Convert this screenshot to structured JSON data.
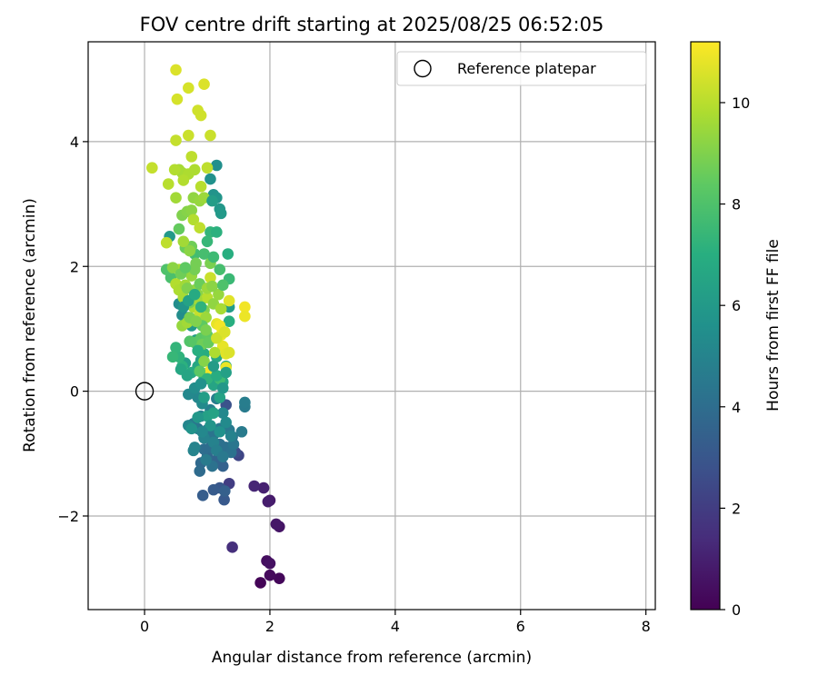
{
  "chart_data": {
    "type": "scatter",
    "title": "FOV centre drift starting at 2025/08/25 06:52:05",
    "xlabel": "Angular distance from reference (arcmin)",
    "ylabel": "Rotation from reference (arcmin)",
    "xlim": [
      -0.9,
      8.15
    ],
    "ylim": [
      -3.5,
      5.6
    ],
    "xticks": [
      0,
      2,
      4,
      6,
      8
    ],
    "yticks": [
      -2,
      0,
      2,
      4
    ],
    "grid": true,
    "legend": {
      "placement": "top-right",
      "entries": [
        {
          "label": "Reference platepar",
          "marker": "open-circle"
        }
      ]
    },
    "reference_point": {
      "x": 0,
      "y": 0
    },
    "colorbar": {
      "label": "Hours from first FF file",
      "colormap": "viridis",
      "range": [
        0,
        11.2
      ],
      "ticks": [
        0,
        2,
        4,
        6,
        8,
        10
      ]
    },
    "points": [
      [
        1.85,
        -3.07,
        0.1
      ],
      [
        2.15,
        -3.0,
        0.2
      ],
      [
        2.0,
        -2.95,
        0.3
      ],
      [
        1.95,
        -2.72,
        0.4
      ],
      [
        2.0,
        -2.76,
        0.5
      ],
      [
        2.15,
        -2.17,
        0.6
      ],
      [
        2.1,
        -2.13,
        0.7
      ],
      [
        2.0,
        -1.75,
        0.8
      ],
      [
        1.97,
        -1.77,
        0.9
      ],
      [
        1.9,
        -1.55,
        1.0
      ],
      [
        1.75,
        -1.52,
        1.2
      ],
      [
        1.4,
        -2.5,
        1.5
      ],
      [
        1.35,
        -1.48,
        2.0
      ],
      [
        1.5,
        -1.03,
        2.3
      ],
      [
        1.45,
        -0.98,
        2.6
      ],
      [
        1.3,
        -0.22,
        2.8
      ],
      [
        1.2,
        -1.55,
        3.0
      ],
      [
        1.27,
        -1.74,
        3.1
      ],
      [
        1.1,
        -1.58,
        3.2
      ],
      [
        0.93,
        -1.67,
        3.3
      ],
      [
        1.28,
        -1.6,
        3.4
      ],
      [
        1.25,
        -1.2,
        3.5
      ],
      [
        1.15,
        -1.1,
        3.6
      ],
      [
        1.0,
        -1.05,
        3.7
      ],
      [
        0.9,
        -1.15,
        3.8
      ],
      [
        0.88,
        -1.28,
        3.9
      ],
      [
        0.95,
        -0.93,
        4.0
      ],
      [
        1.05,
        -0.9,
        4.0
      ],
      [
        1.2,
        -0.85,
        4.1
      ],
      [
        1.3,
        -0.9,
        4.1
      ],
      [
        1.38,
        -0.98,
        4.2
      ],
      [
        1.4,
        -0.73,
        4.2
      ],
      [
        1.1,
        -0.7,
        4.3
      ],
      [
        1.0,
        -0.62,
        4.3
      ],
      [
        0.85,
        -0.6,
        4.4
      ],
      [
        0.78,
        -0.52,
        4.4
      ],
      [
        1.2,
        -0.6,
        4.5
      ],
      [
        1.35,
        -0.62,
        4.5
      ],
      [
        1.55,
        -0.65,
        4.6
      ],
      [
        1.6,
        -0.25,
        4.6
      ],
      [
        1.6,
        -0.18,
        4.7
      ],
      [
        1.15,
        -0.12,
        4.7
      ],
      [
        1.05,
        -0.3,
        4.8
      ],
      [
        0.9,
        -0.4,
        4.8
      ],
      [
        0.95,
        -0.75,
        4.9
      ],
      [
        1.1,
        -0.82,
        4.9
      ],
      [
        0.8,
        -0.9,
        5.0
      ],
      [
        0.78,
        -0.95,
        5.0
      ],
      [
        0.7,
        -0.55,
        5.1
      ],
      [
        0.85,
        -0.1,
        5.1
      ],
      [
        0.7,
        -0.05,
        5.2
      ],
      [
        1.25,
        -0.35,
        5.2
      ],
      [
        0.92,
        -0.2,
        5.3
      ],
      [
        0.55,
        1.4,
        5.4
      ],
      [
        0.6,
        1.22,
        5.4
      ],
      [
        0.7,
        1.18,
        5.5
      ],
      [
        1.15,
        3.62,
        5.5
      ],
      [
        1.05,
        3.4,
        5.6
      ],
      [
        1.1,
        3.15,
        5.7
      ],
      [
        1.15,
        3.1,
        5.8
      ],
      [
        1.2,
        2.92,
        5.9
      ],
      [
        0.4,
        2.48,
        6.0
      ],
      [
        0.75,
        1.05,
        6.0
      ],
      [
        1.35,
        1.35,
        6.1
      ],
      [
        0.82,
        0.82,
        6.2
      ],
      [
        0.65,
        0.45,
        6.2
      ],
      [
        0.9,
        0.5,
        6.3
      ],
      [
        1.0,
        -0.4,
        6.3
      ],
      [
        1.1,
        -0.35,
        6.4
      ],
      [
        1.2,
        -0.1,
        6.4
      ],
      [
        1.1,
        0.1,
        6.5
      ],
      [
        1.25,
        0.15,
        6.5
      ],
      [
        1.3,
        0.4,
        6.6
      ],
      [
        0.85,
        0.4,
        6.6
      ],
      [
        0.95,
        0.2,
        6.7
      ],
      [
        1.15,
        0.55,
        6.7
      ],
      [
        0.75,
        0.3,
        6.8
      ],
      [
        1.02,
        0.3,
        6.8
      ],
      [
        0.95,
        0.6,
        6.9
      ],
      [
        1.35,
        1.12,
        7.0
      ],
      [
        1.33,
        2.2,
        7.0
      ],
      [
        0.6,
        0.4,
        7.1
      ],
      [
        0.55,
        0.55,
        7.2
      ],
      [
        0.5,
        0.7,
        7.3
      ],
      [
        0.45,
        0.55,
        7.4
      ],
      [
        1.35,
        1.8,
        7.5
      ],
      [
        1.2,
        0.2,
        7.6
      ],
      [
        0.8,
        2.2,
        7.7
      ],
      [
        0.95,
        2.2,
        7.8
      ],
      [
        0.42,
        1.82,
        7.9
      ],
      [
        0.35,
        1.95,
        8.0
      ],
      [
        0.72,
        0.8,
        8.1
      ],
      [
        0.8,
        0.78,
        8.2
      ],
      [
        0.9,
        0.85,
        8.3
      ],
      [
        1.0,
        0.9,
        8.4
      ],
      [
        0.55,
        2.6,
        8.5
      ],
      [
        0.65,
        2.3,
        8.6
      ],
      [
        0.75,
        2.32,
        8.7
      ],
      [
        0.82,
        2.05,
        8.8
      ],
      [
        1.05,
        2.05,
        8.9
      ],
      [
        0.6,
        2.82,
        9.0
      ],
      [
        0.68,
        2.88,
        9.1
      ],
      [
        0.75,
        2.9,
        9.2
      ],
      [
        0.78,
        3.1,
        9.3
      ],
      [
        0.88,
        3.05,
        9.4
      ],
      [
        0.95,
        3.1,
        9.5
      ],
      [
        0.5,
        3.1,
        9.6
      ],
      [
        0.55,
        3.55,
        9.7
      ],
      [
        0.6,
        3.5,
        9.7
      ],
      [
        0.7,
        3.48,
        9.8
      ],
      [
        0.8,
        3.55,
        9.8
      ],
      [
        0.62,
        3.38,
        9.9
      ],
      [
        0.48,
        3.55,
        9.9
      ],
      [
        0.38,
        3.32,
        10.0
      ],
      [
        0.9,
        3.28,
        10.0
      ],
      [
        1.0,
        3.58,
        10.1
      ],
      [
        0.75,
        3.76,
        10.1
      ],
      [
        0.12,
        3.58,
        10.2
      ],
      [
        0.5,
        4.02,
        10.2
      ],
      [
        0.7,
        4.1,
        10.3
      ],
      [
        1.05,
        4.1,
        10.3
      ],
      [
        0.85,
        4.5,
        10.4
      ],
      [
        0.9,
        4.42,
        10.4
      ],
      [
        0.52,
        4.68,
        10.5
      ],
      [
        0.7,
        4.86,
        10.5
      ],
      [
        0.95,
        4.92,
        10.6
      ],
      [
        0.5,
        5.15,
        10.6
      ],
      [
        0.35,
        2.38,
        10.1
      ],
      [
        0.5,
        1.72,
        9.9
      ],
      [
        0.55,
        1.62,
        9.8
      ],
      [
        0.62,
        1.5,
        9.7
      ],
      [
        0.65,
        1.7,
        9.6
      ],
      [
        0.7,
        1.92,
        9.5
      ],
      [
        0.75,
        1.85,
        9.4
      ],
      [
        0.8,
        1.62,
        9.3
      ],
      [
        0.85,
        1.55,
        9.2
      ],
      [
        0.9,
        1.45,
        9.1
      ],
      [
        0.95,
        1.3,
        9.0
      ],
      [
        1.0,
        1.5,
        10.0
      ],
      [
        1.05,
        1.82,
        10.3
      ],
      [
        0.6,
        1.05,
        9.4
      ],
      [
        0.68,
        1.1,
        9.6
      ],
      [
        0.78,
        1.35,
        9.8
      ],
      [
        0.88,
        1.25,
        10.2
      ],
      [
        0.98,
        1.18,
        9.5
      ],
      [
        1.1,
        1.4,
        9.3
      ],
      [
        1.15,
        1.08,
        10.8
      ],
      [
        1.2,
        1.05,
        11.0
      ],
      [
        1.22,
        0.9,
        10.9
      ],
      [
        1.25,
        0.72,
        10.8
      ],
      [
        1.3,
        0.6,
        10.7
      ],
      [
        1.35,
        0.62,
        10.6
      ],
      [
        1.3,
        0.38,
        10.9
      ],
      [
        1.05,
        0.33,
        11.0
      ],
      [
        1.6,
        1.35,
        11.0
      ],
      [
        1.6,
        1.2,
        10.9
      ],
      [
        1.35,
        1.45,
        10.7
      ],
      [
        0.55,
        1.95,
        9.8
      ],
      [
        0.62,
        2.4,
        9.6
      ],
      [
        0.72,
        2.25,
        9.2
      ],
      [
        0.8,
        1.95,
        8.8
      ],
      [
        0.88,
        1.72,
        8.6
      ],
      [
        0.92,
        1.05,
        8.4
      ],
      [
        0.72,
        1.18,
        8.9
      ],
      [
        0.82,
        1.12,
        9.0
      ],
      [
        0.92,
        0.75,
        8.7
      ],
      [
        1.02,
        0.78,
        8.5
      ],
      [
        0.95,
        0.48,
        9.1
      ],
      [
        0.88,
        0.32,
        8.3
      ],
      [
        1.18,
        1.55,
        9.4
      ],
      [
        1.22,
        1.32,
        9.7
      ],
      [
        0.45,
        1.98,
        9.2
      ],
      [
        0.58,
        1.88,
        8.7
      ],
      [
        0.68,
        1.65,
        9.0
      ],
      [
        1.0,
        1.65,
        9.5
      ],
      [
        1.08,
        1.68,
        9.2
      ],
      [
        0.72,
        1.42,
        8.8
      ],
      [
        0.83,
        1.48,
        9.6
      ],
      [
        0.98,
        0.98,
        8.9
      ],
      [
        1.12,
        0.62,
        9.8
      ],
      [
        1.15,
        0.85,
        10.4
      ],
      [
        1.28,
        0.95,
        10.6
      ],
      [
        0.78,
        2.75,
        9.9
      ],
      [
        0.88,
        2.62,
        10.1
      ],
      [
        0.65,
        1.98,
        8.4
      ],
      [
        1.05,
        2.55,
        7.3
      ],
      [
        1.1,
        2.15,
        7.6
      ],
      [
        1.2,
        1.95,
        7.8
      ],
      [
        1.25,
        1.7,
        8.0
      ],
      [
        0.85,
        0.65,
        7.0
      ],
      [
        1.0,
        0.2,
        7.2
      ],
      [
        1.15,
        0.25,
        6.9
      ],
      [
        0.95,
        -0.1,
        6.2
      ],
      [
        1.05,
        -0.55,
        5.8
      ],
      [
        1.2,
        -0.65,
        5.6
      ],
      [
        1.3,
        -0.5,
        5.3
      ],
      [
        1.42,
        -0.85,
        4.4
      ],
      [
        0.92,
        -0.65,
        5.2
      ],
      [
        0.85,
        -0.42,
        5.9
      ],
      [
        0.75,
        -0.6,
        5.7
      ],
      [
        1.15,
        -0.95,
        4.8
      ],
      [
        1.25,
        -1.05,
        4.5
      ],
      [
        1.08,
        -1.2,
        4.2
      ],
      [
        0.98,
        -1.1,
        4.6
      ],
      [
        1.38,
        -0.72,
        4.9
      ],
      [
        1.1,
        0.4,
        6.1
      ],
      [
        1.3,
        0.3,
        6.3
      ],
      [
        0.62,
        1.35,
        5.8
      ],
      [
        0.7,
        1.45,
        6.4
      ],
      [
        0.8,
        1.55,
        6.8
      ],
      [
        0.9,
        1.35,
        7.2
      ],
      [
        1.0,
        2.4,
        7.4
      ],
      [
        1.15,
        2.55,
        7.1
      ],
      [
        1.22,
        2.85,
        6.0
      ],
      [
        1.08,
        3.05,
        6.2
      ],
      [
        0.8,
        0.05,
        5.4
      ],
      [
        0.9,
        0.12,
        5.6
      ],
      [
        1.25,
        0.05,
        5.9
      ],
      [
        0.58,
        0.35,
        6.6
      ],
      [
        0.68,
        0.25,
        6.5
      ]
    ]
  }
}
